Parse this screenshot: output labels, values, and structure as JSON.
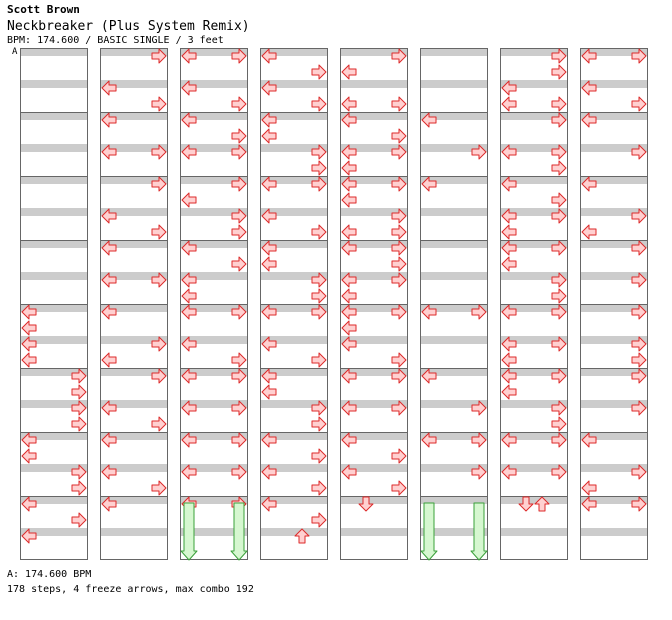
{
  "header": {
    "artist": "Scott Brown",
    "title": "Neckbreaker (Plus System Remix)",
    "info": "BPM: 174.600 / BASIC SINGLE / 3 feet",
    "bpm_marker_label": "A"
  },
  "footer": {
    "bpm_line": "A: 174.600 BPM",
    "stats": "178 steps, 4 freeze arrows, max combo 192"
  },
  "colors": {
    "band": "#cccccc",
    "border": "#666666",
    "arrow_fill": "#ffd0d0",
    "arrow_stroke": "#dd2a2a",
    "freeze_fill": "#d6f7d0",
    "freeze_stroke": "#3aa03a",
    "bpm_line": "#4aa0ff"
  },
  "icons": {
    "left": "left-arrow-icon",
    "right": "right-arrow-icon",
    "down": "down-arrow-icon",
    "up": "up-arrow-icon",
    "freeze": "freeze-arrow-icon"
  },
  "chart_data": {
    "type": "step-chart",
    "columns": 8,
    "measures_per_column": 8,
    "slots_per_measure": 4,
    "lanes": [
      "left",
      "down",
      "up",
      "right"
    ],
    "steps": [
      {
        "c": 0,
        "m": 4,
        "s": 0,
        "d": "L"
      },
      {
        "c": 0,
        "m": 4,
        "s": 1,
        "d": "L"
      },
      {
        "c": 0,
        "m": 4,
        "s": 2,
        "d": "L"
      },
      {
        "c": 0,
        "m": 4,
        "s": 3,
        "d": "L"
      },
      {
        "c": 0,
        "m": 5,
        "s": 0,
        "d": "R"
      },
      {
        "c": 0,
        "m": 5,
        "s": 1,
        "d": "R"
      },
      {
        "c": 0,
        "m": 5,
        "s": 2,
        "d": "R"
      },
      {
        "c": 0,
        "m": 5,
        "s": 3,
        "d": "R"
      },
      {
        "c": 0,
        "m": 6,
        "s": 0,
        "d": "L"
      },
      {
        "c": 0,
        "m": 6,
        "s": 1,
        "d": "L"
      },
      {
        "c": 0,
        "m": 6,
        "s": 2,
        "d": "R"
      },
      {
        "c": 0,
        "m": 6,
        "s": 3,
        "d": "R"
      },
      {
        "c": 0,
        "m": 7,
        "s": 0,
        "d": "L"
      },
      {
        "c": 0,
        "m": 7,
        "s": 1,
        "d": "R"
      },
      {
        "c": 0,
        "m": 7,
        "s": 2,
        "d": "L"
      },
      {
        "c": 1,
        "m": 0,
        "s": 0,
        "d": "R"
      },
      {
        "c": 1,
        "m": 0,
        "s": 2,
        "d": "L"
      },
      {
        "c": 1,
        "m": 0,
        "s": 3,
        "d": "R"
      },
      {
        "c": 1,
        "m": 1,
        "s": 0,
        "d": "L"
      },
      {
        "c": 1,
        "m": 1,
        "s": 2,
        "d": "L"
      },
      {
        "c": 1,
        "m": 1,
        "s": 2,
        "d": "R"
      },
      {
        "c": 1,
        "m": 2,
        "s": 0,
        "d": "R"
      },
      {
        "c": 1,
        "m": 2,
        "s": 2,
        "d": "L"
      },
      {
        "c": 1,
        "m": 2,
        "s": 3,
        "d": "R"
      },
      {
        "c": 1,
        "m": 3,
        "s": 0,
        "d": "L"
      },
      {
        "c": 1,
        "m": 3,
        "s": 2,
        "d": "L"
      },
      {
        "c": 1,
        "m": 3,
        "s": 2,
        "d": "R"
      },
      {
        "c": 1,
        "m": 4,
        "s": 0,
        "d": "L"
      },
      {
        "c": 1,
        "m": 4,
        "s": 2,
        "d": "R"
      },
      {
        "c": 1,
        "m": 4,
        "s": 3,
        "d": "L"
      },
      {
        "c": 1,
        "m": 5,
        "s": 0,
        "d": "R"
      },
      {
        "c": 1,
        "m": 5,
        "s": 2,
        "d": "L"
      },
      {
        "c": 1,
        "m": 5,
        "s": 3,
        "d": "R"
      },
      {
        "c": 1,
        "m": 6,
        "s": 0,
        "d": "L"
      },
      {
        "c": 1,
        "m": 6,
        "s": 2,
        "d": "L"
      },
      {
        "c": 1,
        "m": 6,
        "s": 3,
        "d": "R"
      },
      {
        "c": 1,
        "m": 7,
        "s": 0,
        "d": "L"
      },
      {
        "c": 2,
        "m": 0,
        "s": 0,
        "d": "L"
      },
      {
        "c": 2,
        "m": 0,
        "s": 0,
        "d": "R"
      },
      {
        "c": 2,
        "m": 0,
        "s": 2,
        "d": "L"
      },
      {
        "c": 2,
        "m": 0,
        "s": 3,
        "d": "R"
      },
      {
        "c": 2,
        "m": 1,
        "s": 0,
        "d": "L"
      },
      {
        "c": 2,
        "m": 1,
        "s": 1,
        "d": "R"
      },
      {
        "c": 2,
        "m": 1,
        "s": 2,
        "d": "L"
      },
      {
        "c": 2,
        "m": 1,
        "s": 2,
        "d": "R"
      },
      {
        "c": 2,
        "m": 2,
        "s": 0,
        "d": "R"
      },
      {
        "c": 2,
        "m": 2,
        "s": 1,
        "d": "L"
      },
      {
        "c": 2,
        "m": 2,
        "s": 2,
        "d": "R"
      },
      {
        "c": 2,
        "m": 2,
        "s": 3,
        "d": "R"
      },
      {
        "c": 2,
        "m": 3,
        "s": 0,
        "d": "L"
      },
      {
        "c": 2,
        "m": 3,
        "s": 1,
        "d": "R"
      },
      {
        "c": 2,
        "m": 3,
        "s": 2,
        "d": "L"
      },
      {
        "c": 2,
        "m": 3,
        "s": 3,
        "d": "L"
      },
      {
        "c": 2,
        "m": 4,
        "s": 0,
        "d": "L"
      },
      {
        "c": 2,
        "m": 4,
        "s": 0,
        "d": "R"
      },
      {
        "c": 2,
        "m": 4,
        "s": 2,
        "d": "L"
      },
      {
        "c": 2,
        "m": 4,
        "s": 3,
        "d": "R"
      },
      {
        "c": 2,
        "m": 5,
        "s": 0,
        "d": "L"
      },
      {
        "c": 2,
        "m": 5,
        "s": 0,
        "d": "R"
      },
      {
        "c": 2,
        "m": 5,
        "s": 2,
        "d": "L"
      },
      {
        "c": 2,
        "m": 5,
        "s": 2,
        "d": "R"
      },
      {
        "c": 2,
        "m": 6,
        "s": 0,
        "d": "L"
      },
      {
        "c": 2,
        "m": 6,
        "s": 0,
        "d": "R"
      },
      {
        "c": 2,
        "m": 6,
        "s": 2,
        "d": "L"
      },
      {
        "c": 2,
        "m": 6,
        "s": 2,
        "d": "R"
      },
      {
        "c": 2,
        "m": 7,
        "s": 0,
        "d": "L"
      },
      {
        "c": 2,
        "m": 7,
        "s": 0,
        "d": "R"
      },
      {
        "c": 3,
        "m": 0,
        "s": 0,
        "d": "L"
      },
      {
        "c": 3,
        "m": 0,
        "s": 1,
        "d": "R"
      },
      {
        "c": 3,
        "m": 0,
        "s": 2,
        "d": "L"
      },
      {
        "c": 3,
        "m": 0,
        "s": 3,
        "d": "R"
      },
      {
        "c": 3,
        "m": 1,
        "s": 0,
        "d": "L"
      },
      {
        "c": 3,
        "m": 1,
        "s": 1,
        "d": "L"
      },
      {
        "c": 3,
        "m": 1,
        "s": 2,
        "d": "R"
      },
      {
        "c": 3,
        "m": 1,
        "s": 3,
        "d": "R"
      },
      {
        "c": 3,
        "m": 2,
        "s": 0,
        "d": "L"
      },
      {
        "c": 3,
        "m": 2,
        "s": 0,
        "d": "R"
      },
      {
        "c": 3,
        "m": 2,
        "s": 2,
        "d": "L"
      },
      {
        "c": 3,
        "m": 2,
        "s": 3,
        "d": "R"
      },
      {
        "c": 3,
        "m": 3,
        "s": 0,
        "d": "L"
      },
      {
        "c": 3,
        "m": 3,
        "s": 1,
        "d": "L"
      },
      {
        "c": 3,
        "m": 3,
        "s": 2,
        "d": "R"
      },
      {
        "c": 3,
        "m": 3,
        "s": 3,
        "d": "R"
      },
      {
        "c": 3,
        "m": 4,
        "s": 0,
        "d": "L"
      },
      {
        "c": 3,
        "m": 4,
        "s": 0,
        "d": "R"
      },
      {
        "c": 3,
        "m": 4,
        "s": 2,
        "d": "L"
      },
      {
        "c": 3,
        "m": 4,
        "s": 3,
        "d": "R"
      },
      {
        "c": 3,
        "m": 5,
        "s": 0,
        "d": "L"
      },
      {
        "c": 3,
        "m": 5,
        "s": 1,
        "d": "L"
      },
      {
        "c": 3,
        "m": 5,
        "s": 2,
        "d": "R"
      },
      {
        "c": 3,
        "m": 5,
        "s": 3,
        "d": "R"
      },
      {
        "c": 3,
        "m": 6,
        "s": 0,
        "d": "L"
      },
      {
        "c": 3,
        "m": 6,
        "s": 1,
        "d": "R"
      },
      {
        "c": 3,
        "m": 6,
        "s": 2,
        "d": "L"
      },
      {
        "c": 3,
        "m": 6,
        "s": 3,
        "d": "R"
      },
      {
        "c": 3,
        "m": 7,
        "s": 0,
        "d": "L"
      },
      {
        "c": 3,
        "m": 7,
        "s": 1,
        "d": "R"
      },
      {
        "c": 3,
        "m": 7,
        "s": 2,
        "d": "U"
      },
      {
        "c": 4,
        "m": 0,
        "s": 0,
        "d": "R"
      },
      {
        "c": 4,
        "m": 0,
        "s": 1,
        "d": "L"
      },
      {
        "c": 4,
        "m": 0,
        "s": 3,
        "d": "L"
      },
      {
        "c": 4,
        "m": 0,
        "s": 3,
        "d": "R"
      },
      {
        "c": 4,
        "m": 1,
        "s": 0,
        "d": "L"
      },
      {
        "c": 4,
        "m": 1,
        "s": 1,
        "d": "R"
      },
      {
        "c": 4,
        "m": 1,
        "s": 2,
        "d": "L"
      },
      {
        "c": 4,
        "m": 1,
        "s": 2,
        "d": "R"
      },
      {
        "c": 4,
        "m": 1,
        "s": 3,
        "d": "L"
      },
      {
        "c": 4,
        "m": 2,
        "s": 0,
        "d": "L"
      },
      {
        "c": 4,
        "m": 2,
        "s": 0,
        "d": "R"
      },
      {
        "c": 4,
        "m": 2,
        "s": 1,
        "d": "L"
      },
      {
        "c": 4,
        "m": 2,
        "s": 2,
        "d": "R"
      },
      {
        "c": 4,
        "m": 2,
        "s": 3,
        "d": "L"
      },
      {
        "c": 4,
        "m": 2,
        "s": 3,
        "d": "R"
      },
      {
        "c": 4,
        "m": 3,
        "s": 0,
        "d": "L"
      },
      {
        "c": 4,
        "m": 3,
        "s": 0,
        "d": "R"
      },
      {
        "c": 4,
        "m": 3,
        "s": 1,
        "d": "R"
      },
      {
        "c": 4,
        "m": 3,
        "s": 2,
        "d": "L"
      },
      {
        "c": 4,
        "m": 3,
        "s": 2,
        "d": "R"
      },
      {
        "c": 4,
        "m": 3,
        "s": 3,
        "d": "L"
      },
      {
        "c": 4,
        "m": 4,
        "s": 0,
        "d": "L"
      },
      {
        "c": 4,
        "m": 4,
        "s": 0,
        "d": "R"
      },
      {
        "c": 4,
        "m": 4,
        "s": 1,
        "d": "L"
      },
      {
        "c": 4,
        "m": 4,
        "s": 2,
        "d": "L"
      },
      {
        "c": 4,
        "m": 4,
        "s": 3,
        "d": "R"
      },
      {
        "c": 4,
        "m": 5,
        "s": 0,
        "d": "L"
      },
      {
        "c": 4,
        "m": 5,
        "s": 0,
        "d": "R"
      },
      {
        "c": 4,
        "m": 5,
        "s": 2,
        "d": "L"
      },
      {
        "c": 4,
        "m": 5,
        "s": 2,
        "d": "R"
      },
      {
        "c": 4,
        "m": 6,
        "s": 0,
        "d": "L"
      },
      {
        "c": 4,
        "m": 6,
        "s": 1,
        "d": "R"
      },
      {
        "c": 4,
        "m": 6,
        "s": 2,
        "d": "L"
      },
      {
        "c": 4,
        "m": 6,
        "s": 3,
        "d": "R"
      },
      {
        "c": 4,
        "m": 7,
        "s": 0,
        "d": "D"
      },
      {
        "c": 5,
        "m": 1,
        "s": 0,
        "d": "L"
      },
      {
        "c": 5,
        "m": 1,
        "s": 2,
        "d": "R"
      },
      {
        "c": 5,
        "m": 2,
        "s": 0,
        "d": "L"
      },
      {
        "c": 5,
        "m": 4,
        "s": 0,
        "d": "L"
      },
      {
        "c": 5,
        "m": 4,
        "s": 0,
        "d": "R"
      },
      {
        "c": 5,
        "m": 5,
        "s": 0,
        "d": "L"
      },
      {
        "c": 5,
        "m": 5,
        "s": 2,
        "d": "R"
      },
      {
        "c": 5,
        "m": 6,
        "s": 0,
        "d": "L"
      },
      {
        "c": 5,
        "m": 6,
        "s": 0,
        "d": "R"
      },
      {
        "c": 5,
        "m": 6,
        "s": 2,
        "d": "R"
      },
      {
        "c": 6,
        "m": 0,
        "s": 0,
        "d": "R"
      },
      {
        "c": 6,
        "m": 0,
        "s": 1,
        "d": "R"
      },
      {
        "c": 6,
        "m": 0,
        "s": 2,
        "d": "L"
      },
      {
        "c": 6,
        "m": 0,
        "s": 3,
        "d": "L"
      },
      {
        "c": 6,
        "m": 0,
        "s": 3,
        "d": "R"
      },
      {
        "c": 6,
        "m": 1,
        "s": 0,
        "d": "R"
      },
      {
        "c": 6,
        "m": 1,
        "s": 2,
        "d": "L"
      },
      {
        "c": 6,
        "m": 1,
        "s": 2,
        "d": "R"
      },
      {
        "c": 6,
        "m": 1,
        "s": 3,
        "d": "R"
      },
      {
        "c": 6,
        "m": 2,
        "s": 0,
        "d": "L"
      },
      {
        "c": 6,
        "m": 2,
        "s": 1,
        "d": "R"
      },
      {
        "c": 6,
        "m": 2,
        "s": 2,
        "d": "L"
      },
      {
        "c": 6,
        "m": 2,
        "s": 2,
        "d": "R"
      },
      {
        "c": 6,
        "m": 2,
        "s": 3,
        "d": "L"
      },
      {
        "c": 6,
        "m": 3,
        "s": 0,
        "d": "L"
      },
      {
        "c": 6,
        "m": 3,
        "s": 0,
        "d": "R"
      },
      {
        "c": 6,
        "m": 3,
        "s": 1,
        "d": "L"
      },
      {
        "c": 6,
        "m": 3,
        "s": 2,
        "d": "R"
      },
      {
        "c": 6,
        "m": 3,
        "s": 3,
        "d": "R"
      },
      {
        "c": 6,
        "m": 4,
        "s": 0,
        "d": "L"
      },
      {
        "c": 6,
        "m": 4,
        "s": 0,
        "d": "R"
      },
      {
        "c": 6,
        "m": 4,
        "s": 2,
        "d": "L"
      },
      {
        "c": 6,
        "m": 4,
        "s": 2,
        "d": "R"
      },
      {
        "c": 6,
        "m": 4,
        "s": 3,
        "d": "L"
      },
      {
        "c": 6,
        "m": 5,
        "s": 0,
        "d": "L"
      },
      {
        "c": 6,
        "m": 5,
        "s": 0,
        "d": "R"
      },
      {
        "c": 6,
        "m": 5,
        "s": 1,
        "d": "L"
      },
      {
        "c": 6,
        "m": 5,
        "s": 2,
        "d": "R"
      },
      {
        "c": 6,
        "m": 5,
        "s": 3,
        "d": "R"
      },
      {
        "c": 6,
        "m": 6,
        "s": 0,
        "d": "L"
      },
      {
        "c": 6,
        "m": 6,
        "s": 0,
        "d": "R"
      },
      {
        "c": 6,
        "m": 6,
        "s": 2,
        "d": "L"
      },
      {
        "c": 6,
        "m": 6,
        "s": 2,
        "d": "R"
      },
      {
        "c": 6,
        "m": 7,
        "s": 0,
        "d": "D"
      },
      {
        "c": 6,
        "m": 7,
        "s": 0,
        "d": "U"
      },
      {
        "c": 7,
        "m": 0,
        "s": 0,
        "d": "L"
      },
      {
        "c": 7,
        "m": 0,
        "s": 0,
        "d": "R"
      },
      {
        "c": 7,
        "m": 0,
        "s": 2,
        "d": "L"
      },
      {
        "c": 7,
        "m": 0,
        "s": 3,
        "d": "R"
      },
      {
        "c": 7,
        "m": 1,
        "s": 0,
        "d": "L"
      },
      {
        "c": 7,
        "m": 1,
        "s": 2,
        "d": "R"
      },
      {
        "c": 7,
        "m": 2,
        "s": 0,
        "d": "L"
      },
      {
        "c": 7,
        "m": 2,
        "s": 2,
        "d": "R"
      },
      {
        "c": 7,
        "m": 2,
        "s": 3,
        "d": "L"
      },
      {
        "c": 7,
        "m": 3,
        "s": 0,
        "d": "R"
      },
      {
        "c": 7,
        "m": 3,
        "s": 2,
        "d": "R"
      },
      {
        "c": 7,
        "m": 4,
        "s": 0,
        "d": "R"
      },
      {
        "c": 7,
        "m": 4,
        "s": 2,
        "d": "R"
      },
      {
        "c": 7,
        "m": 4,
        "s": 3,
        "d": "R"
      },
      {
        "c": 7,
        "m": 5,
        "s": 0,
        "d": "R"
      },
      {
        "c": 7,
        "m": 5,
        "s": 2,
        "d": "R"
      },
      {
        "c": 7,
        "m": 6,
        "s": 0,
        "d": "L"
      },
      {
        "c": 7,
        "m": 6,
        "s": 2,
        "d": "R"
      },
      {
        "c": 7,
        "m": 6,
        "s": 3,
        "d": "L"
      },
      {
        "c": 7,
        "m": 7,
        "s": 0,
        "d": "L"
      },
      {
        "c": 7,
        "m": 7,
        "s": 0,
        "d": "R"
      }
    ],
    "freezes": [
      {
        "c": 2,
        "m": 7,
        "s": 0,
        "lane": "left",
        "len_slots": 4
      },
      {
        "c": 2,
        "m": 7,
        "s": 0,
        "lane": "right",
        "len_slots": 4
      },
      {
        "c": 5,
        "m": 7,
        "s": 0,
        "lane": "left",
        "len_slots": 4
      },
      {
        "c": 5,
        "m": 7,
        "s": 0,
        "lane": "right",
        "len_slots": 4
      }
    ]
  }
}
